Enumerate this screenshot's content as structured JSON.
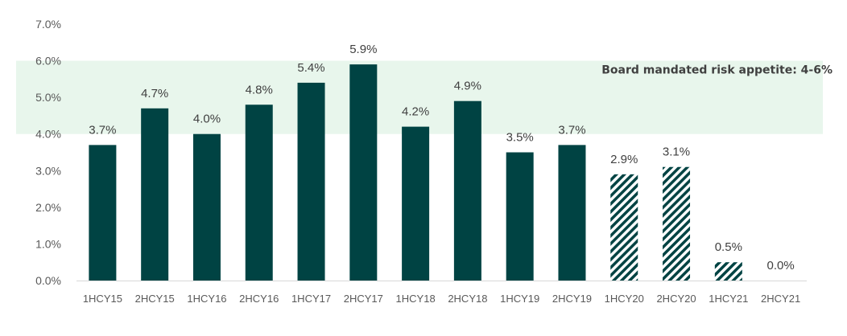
{
  "chart_data": {
    "type": "bar",
    "categories": [
      "1HCY15",
      "2HCY15",
      "1HCY16",
      "2HCY16",
      "1HCY17",
      "2HCY17",
      "1HCY18",
      "2HCY18",
      "1HCY19",
      "2HCY19",
      "1HCY20",
      "2HCY20",
      "1HCY21",
      "2HCY21"
    ],
    "values": [
      3.7,
      4.7,
      4.0,
      4.8,
      5.4,
      5.9,
      4.2,
      4.9,
      3.5,
      3.7,
      2.9,
      3.1,
      0.5,
      0.0
    ],
    "data_labels": [
      "3.7%",
      "4.7%",
      "4.0%",
      "4.8%",
      "5.4%",
      "5.9%",
      "4.2%",
      "4.9%",
      "3.5%",
      "3.7%",
      "2.9%",
      "3.1%",
      "0.5%",
      "0.0%"
    ],
    "bar_style": [
      "solid",
      "solid",
      "solid",
      "solid",
      "solid",
      "solid",
      "solid",
      "solid",
      "solid",
      "solid",
      "hatched",
      "hatched",
      "hatched",
      "hatched"
    ],
    "ylim": [
      0,
      7
    ],
    "yticks": [
      0,
      1,
      2,
      3,
      4,
      5,
      6,
      7
    ],
    "ytick_labels": [
      "0.0%",
      "1.0%",
      "2.0%",
      "3.0%",
      "4.0%",
      "5.0%",
      "6.0%",
      "7.0%"
    ],
    "band": {
      "from": 4,
      "to": 6,
      "label": "Board mandated risk appetite: 4-6%"
    },
    "title": "",
    "xlabel": "",
    "ylabel": "",
    "grid": false,
    "colors": {
      "bar": "#004343",
      "band": "#E8F6EC",
      "axis": "#D9D9D9"
    }
  }
}
